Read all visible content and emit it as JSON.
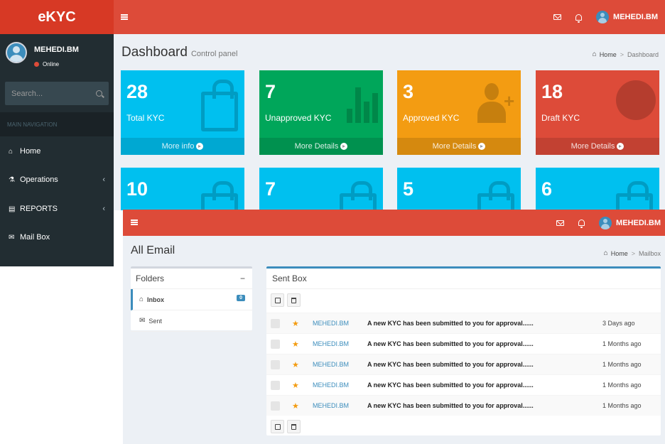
{
  "app": {
    "logo": "eKYC",
    "username": "MEHEDI.BM"
  },
  "sidebar": {
    "user_name": "MEHEDI.BM",
    "status": "Online",
    "search_placeholder": "Search...",
    "nav_header": "MAIN NAVIGATION",
    "items": [
      {
        "label": "Home",
        "icon": "home-icon"
      },
      {
        "label": "Operations",
        "icon": "flask-icon"
      },
      {
        "label": "REPORTS",
        "icon": "report-icon"
      },
      {
        "label": "Mail Box",
        "icon": "envelope-icon"
      }
    ]
  },
  "dashboard": {
    "title": "Dashboard",
    "subtitle": "Control panel",
    "breadcrumb": {
      "home": "Home",
      "current": "Dashboard"
    },
    "boxes": [
      {
        "number": "28",
        "label": "Total KYC",
        "link": "More info",
        "color": "#00c0ef",
        "icon": "shopping-bag-icon"
      },
      {
        "number": "7",
        "label": "Unapproved KYC",
        "link": "More Details",
        "color": "#00a65a",
        "icon": "bar-chart-icon"
      },
      {
        "number": "3",
        "label": "Approved KYC",
        "link": "More Details",
        "color": "#f39c12",
        "icon": "user-plus-icon"
      },
      {
        "number": "18",
        "label": "Draft KYC",
        "link": "More Details",
        "color": "#dd4b39",
        "icon": "pie-chart-icon"
      }
    ],
    "boxes_row2": [
      {
        "number": "10",
        "color": "#00c0ef"
      },
      {
        "number": "7",
        "color": "#00c0ef"
      },
      {
        "number": "5",
        "color": "#00c0ef"
      },
      {
        "number": "6",
        "color": "#00c0ef"
      }
    ]
  },
  "mailbox": {
    "title": "All Email",
    "breadcrumb": {
      "home": "Home",
      "current": "Mailbox"
    },
    "username": "MEHEDI.BM",
    "folders": {
      "header": "Folders",
      "collapse": "−",
      "items": [
        {
          "label": "Inbox",
          "badge": "0"
        },
        {
          "label": "Sent"
        }
      ]
    },
    "sent_box": {
      "header": "Sent Box",
      "messages": [
        {
          "from": "MEHEDI.BM",
          "subject": "A new KYC has been submitted to you for approval......",
          "date": "3 Days ago"
        },
        {
          "from": "MEHEDI.BM",
          "subject": "A new KYC has been submitted to you for approval......",
          "date": "1 Months ago"
        },
        {
          "from": "MEHEDI.BM",
          "subject": "A new KYC has been submitted to you for approval......",
          "date": "1 Months ago"
        },
        {
          "from": "MEHEDI.BM",
          "subject": "A new KYC has been submitted to you for approval......",
          "date": "1 Months ago"
        },
        {
          "from": "MEHEDI.BM",
          "subject": "A new KYC has been submitted to you for approval......",
          "date": "1 Months ago"
        }
      ]
    }
  }
}
